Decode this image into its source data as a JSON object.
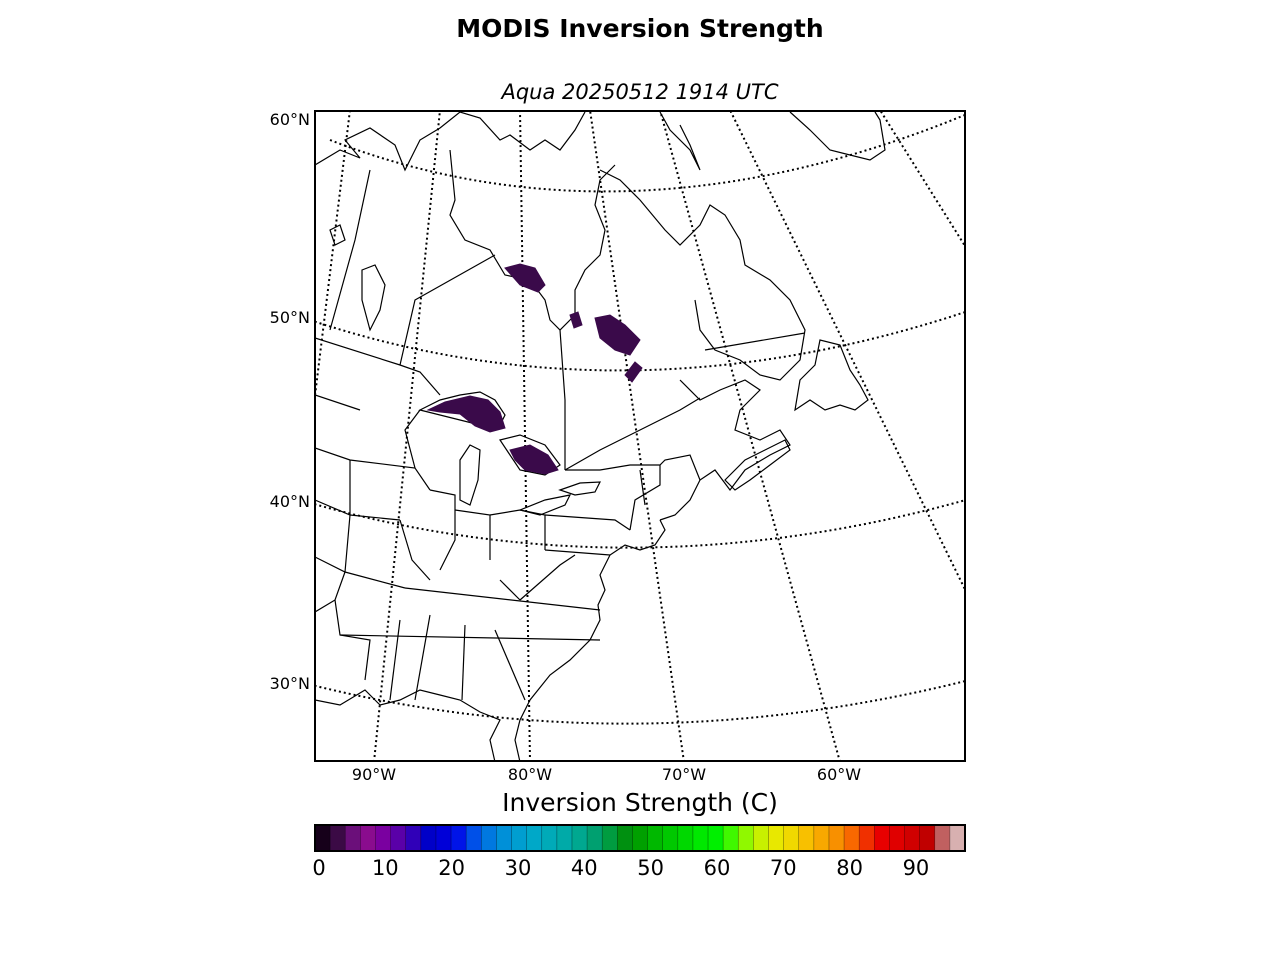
{
  "title": "MODIS Inversion Strength",
  "subtitle": "Aqua 20250512 1914 UTC",
  "map": {
    "region": "Eastern North America (Great Lakes, Northeast US, Eastern Canada)",
    "projection": "conic",
    "latitude_labels": [
      "60°N",
      "50°N",
      "40°N",
      "30°N"
    ],
    "longitude_labels": [
      "90°W",
      "80°W",
      "70°W",
      "60°W"
    ],
    "features": [
      "coastlines",
      "country borders",
      "state/province borders",
      "graticule (dotted)"
    ],
    "data_patches": [
      {
        "area": "Lake Superior",
        "color": "#3a0a4a"
      },
      {
        "area": "Lake Huron",
        "color": "#3a0a4a"
      },
      {
        "area": "Lake Nipigon",
        "color": "#3a0a4a"
      },
      {
        "area": "Southern Quebec",
        "color": "#3a0a4a"
      }
    ]
  },
  "colorbar": {
    "label": "Inversion Strength (C)",
    "tick_labels": [
      "0",
      "10",
      "20",
      "30",
      "40",
      "50",
      "60",
      "70",
      "80",
      "90"
    ],
    "tick_values": [
      0,
      10,
      20,
      30,
      40,
      50,
      60,
      70,
      80,
      90
    ],
    "min": 0,
    "max": 98,
    "colors": [
      "#16001a",
      "#3b0a45",
      "#6b0f7a",
      "#8a0c8e",
      "#7a00a0",
      "#5a00a8",
      "#3000b8",
      "#0000c8",
      "#0000d8",
      "#0014e8",
      "#0050e8",
      "#0078e0",
      "#0090d8",
      "#009ed0",
      "#00a8c8",
      "#00aab8",
      "#00aaa8",
      "#00a890",
      "#00a070",
      "#009c40",
      "#009010",
      "#00a000",
      "#00b800",
      "#00c800",
      "#00d800",
      "#00e800",
      "#00f000",
      "#40f800",
      "#90f800",
      "#c8f000",
      "#e8e800",
      "#f0d800",
      "#f8c000",
      "#f8a800",
      "#f89000",
      "#f86800",
      "#f03000",
      "#e80000",
      "#e00000",
      "#d00000",
      "#c00000",
      "#c06060",
      "#d8b0b0"
    ]
  }
}
